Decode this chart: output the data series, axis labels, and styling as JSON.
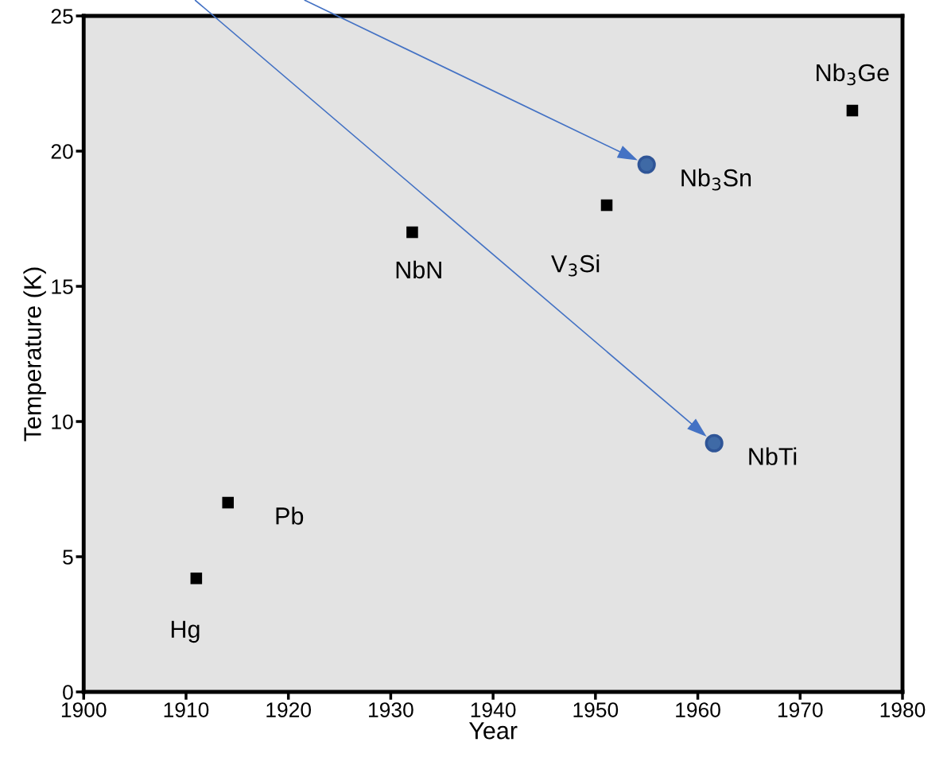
{
  "chart_data": {
    "type": "scatter",
    "xlabel": "Year",
    "ylabel": "Temperature (K)",
    "series": [
      {
        "color": "#000000",
        "marker": "square",
        "x": [
          1911.0,
          1914.1,
          1932.1,
          1951.1,
          1975.1
        ],
        "values": [
          4.2,
          7.0,
          17.0,
          18.0,
          21.5
        ]
      },
      {
        "color": "#3f6aa6",
        "marker": "circle",
        "x": [
          1955.0,
          1961.6
        ],
        "values": [
          19.5,
          9.2
        ]
      }
    ],
    "xlim": [
      1900,
      1980
    ],
    "xticks": [
      1900,
      1910,
      1920,
      1930,
      1940,
      1950,
      1960,
      1970,
      1980
    ],
    "ylim": [
      0,
      25
    ],
    "yticks": [
      0,
      5,
      10,
      15,
      20,
      25
    ],
    "grid": false,
    "annotations": [
      {
        "text": "Hg",
        "x": 1911.0,
        "y": 4.2
      },
      {
        "text": "Pb",
        "x": 1914.1,
        "y": 7.0
      },
      {
        "text": "NbN",
        "x": 1932.1,
        "y": 17.0
      },
      {
        "text": "V$_{3}$Si",
        "x": 1951.1,
        "y": 18.0
      },
      {
        "text": "Nb$_{3}$Ge",
        "x": 1975.1,
        "y": 21.5
      },
      {
        "text": "Nb$_{3}$Sn",
        "x": 1955.0,
        "y": 19.5
      },
      {
        "text": "NbTi",
        "x": 1961.6,
        "y": 9.2
      }
    ]
  }
}
